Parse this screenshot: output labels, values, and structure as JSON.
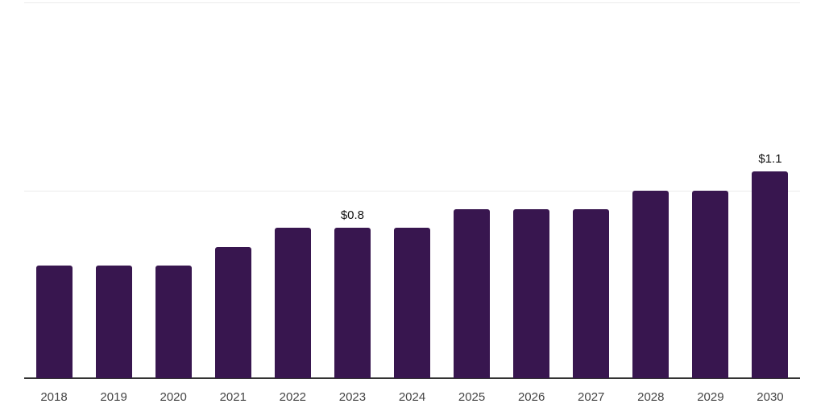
{
  "chart_data": {
    "type": "bar",
    "title": "",
    "xlabel": "",
    "ylabel": "",
    "categories": [
      "2018",
      "2019",
      "2020",
      "2021",
      "2022",
      "2023",
      "2024",
      "2025",
      "2026",
      "2027",
      "2028",
      "2029",
      "2030"
    ],
    "values": [
      0.6,
      0.6,
      0.6,
      0.7,
      0.8,
      0.8,
      0.8,
      0.9,
      0.9,
      0.9,
      1.0,
      1.0,
      1.1
    ],
    "bar_labels": {
      "2023": "$0.8",
      "2030": "$1.1"
    },
    "ylim": [
      0,
      2
    ],
    "gridline_values": [
      1,
      2
    ],
    "grid": true,
    "legend": "none",
    "colors": {
      "bar": "#38164f",
      "axis_line": "#333333",
      "gridline": "#ebebeb",
      "tick_label": "#444444",
      "data_label": "#111111",
      "background": "#ffffff"
    }
  }
}
